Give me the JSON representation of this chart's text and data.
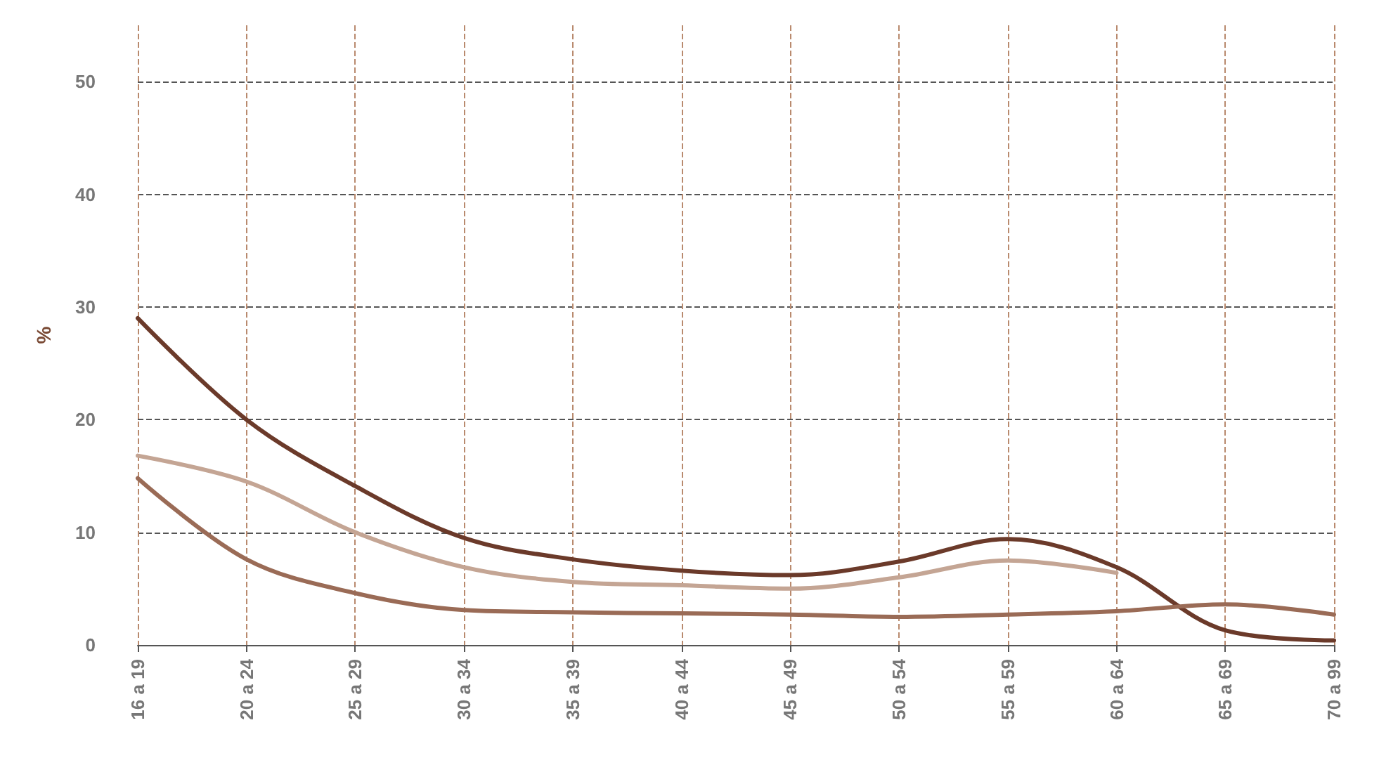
{
  "chart_data": {
    "type": "line",
    "ylabel": "%",
    "categories": [
      "16 a 19",
      "20 a 24",
      "25 a 29",
      "30 a 34",
      "35 a 39",
      "40 a 44",
      "45 a 49",
      "50 a 54",
      "55 a 59",
      "60 a 64",
      "65 a 69",
      "70 a 99"
    ],
    "series": [
      {
        "color": "#6b3a2a",
        "values": [
          29.0,
          20.0,
          14.1,
          9.5,
          7.6,
          6.6,
          6.2,
          7.4,
          9.4,
          6.9,
          1.3,
          0.4
        ]
      },
      {
        "color": "#c4a594",
        "values": [
          16.8,
          14.5,
          10.0,
          6.9,
          5.6,
          5.3,
          5.0,
          6.0,
          7.5,
          6.4,
          null,
          null
        ]
      },
      {
        "color": "#9a6b56",
        "values": [
          14.8,
          7.6,
          4.6,
          3.1,
          2.9,
          2.8,
          2.7,
          2.5,
          2.7,
          3.0,
          3.6,
          2.7
        ]
      }
    ],
    "ylim": [
      0,
      55
    ],
    "yticks": [
      0,
      10,
      20,
      30,
      40,
      50
    ],
    "grid": true,
    "marker": "none",
    "line_style": "solid"
  }
}
